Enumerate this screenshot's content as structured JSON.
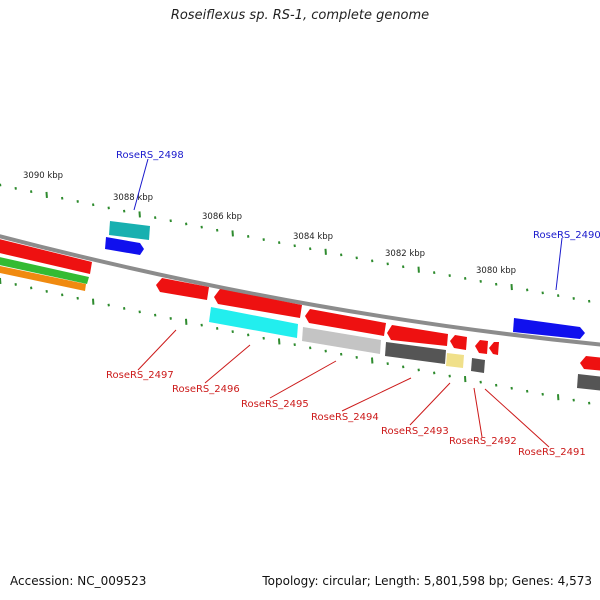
{
  "title": "Roseiflexus sp. RS-1, complete genome",
  "footer": {
    "accession": "Accession: NC_009523",
    "stats": "Topology: circular; Length: 5,801,598 bp; Genes: 4,573"
  },
  "colors": {
    "backbone": "#8c8c8c",
    "tick": "#2e8b2e",
    "forward_label": "#1a1acc",
    "reverse_label": "#cc1a1a"
  },
  "kbp_labels": [
    "3090 kbp",
    "3088 kbp",
    "3086 kbp",
    "3084 kbp",
    "3082 kbp",
    "3080 kbp"
  ],
  "gene_labels": {
    "forward": [
      "RoseRS_2498",
      "RoseRS_2490"
    ],
    "reverse": [
      "RoseRS_2497",
      "RoseRS_2496",
      "RoseRS_2495",
      "RoseRS_2494",
      "RoseRS_2493",
      "RoseRS_2492",
      "RoseRS_2491"
    ]
  },
  "gene_colors": {
    "red": "#ee1111",
    "blue": "#1010ee",
    "teal": "#18b0b0",
    "cyan": "#22eeee",
    "light_gray": "#c4c4c4",
    "dark_gray": "#555555",
    "pale_yellow": "#f0e08a",
    "green": "#33bb33",
    "orange": "#f08a10"
  }
}
